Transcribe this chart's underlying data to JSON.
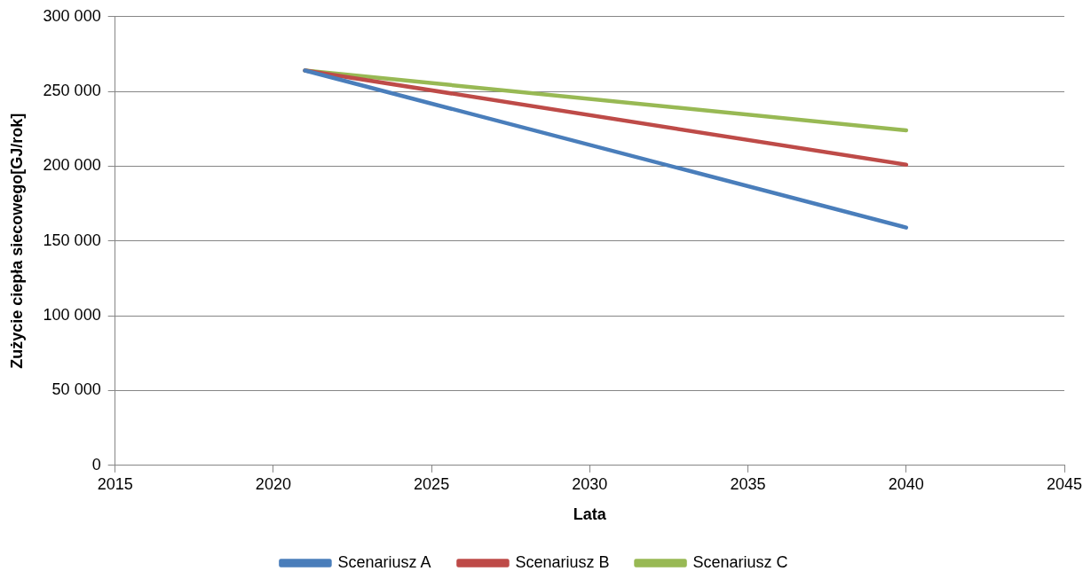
{
  "chart_data": {
    "type": "line",
    "xlabel": "Lata",
    "ylabel": "Zużycie ciepła siecowego[GJ/rok]",
    "xlim": [
      2015,
      2045
    ],
    "xticks": [
      2015,
      2020,
      2025,
      2030,
      2035,
      2040,
      2045
    ],
    "ylim": [
      0,
      300000
    ],
    "yticks": [
      {
        "value": 0,
        "label": "0"
      },
      {
        "value": 50000,
        "label": "50 000"
      },
      {
        "value": 100000,
        "label": "100 000"
      },
      {
        "value": 150000,
        "label": "150 000"
      },
      {
        "value": 200000,
        "label": "200 000"
      },
      {
        "value": 250000,
        "label": "250 000"
      },
      {
        "value": 300000,
        "label": "300 000"
      }
    ],
    "x": [
      2021,
      2040
    ],
    "series": [
      {
        "name": "Scenariusz A",
        "color": "#4a7ebb",
        "values": [
          264000,
          159000
        ]
      },
      {
        "name": "Scenariusz B",
        "color": "#be4b48",
        "values": [
          264000,
          201000
        ]
      },
      {
        "name": "Scenariusz C",
        "color": "#98b954",
        "values": [
          264000,
          224000
        ]
      }
    ],
    "grid": "y",
    "legend": "bottom",
    "marker": "none",
    "line_style": "solid"
  }
}
